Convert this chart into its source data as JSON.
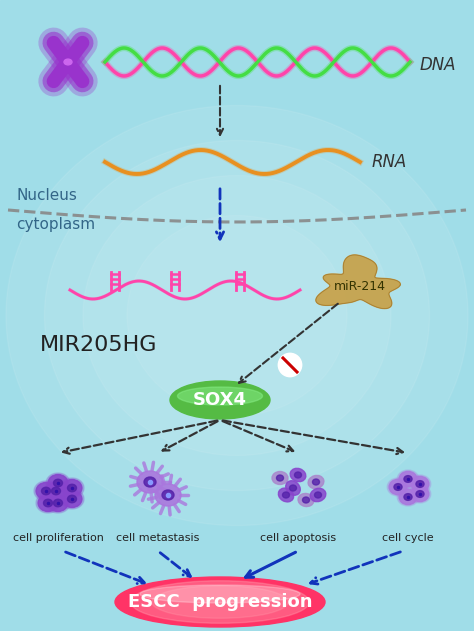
{
  "bg_color": "#9edbe8",
  "figsize": [
    4.74,
    6.31
  ],
  "dpi": 100,
  "nucleus_label": "Nucleus",
  "cytoplasm_label": "cytoplasm",
  "dna_label": "DNA",
  "rna_label": "RNA",
  "mir214_label": "miR-214",
  "mir205hg_label": "MIR205HG",
  "sox4_label": "SOX4",
  "escc_label": "ESCC  progression",
  "cell_labels": [
    "cell proliferation",
    "cell metastasis",
    "cell apoptosis",
    "cell cycle"
  ],
  "chromosome_color": "#9933cc",
  "dna_color1": "#ff44aa",
  "dna_color2": "#44dd44",
  "rna_color": "#e89020",
  "lncrna_color": "#ff44aa",
  "mir214_color": "#c8a045",
  "sox4_color_outer": "#66cc66",
  "sox4_color_inner": "#55bb44",
  "escc_color": "#ff3366",
  "escc_color2": "#ff8899",
  "arrow_black": "#333333",
  "arrow_blue": "#1133bb",
  "arrow_gray": "#444444",
  "cell_purple": "#8844cc",
  "cell_light": "#aa77dd",
  "cell_nucleus": "#5522aa"
}
